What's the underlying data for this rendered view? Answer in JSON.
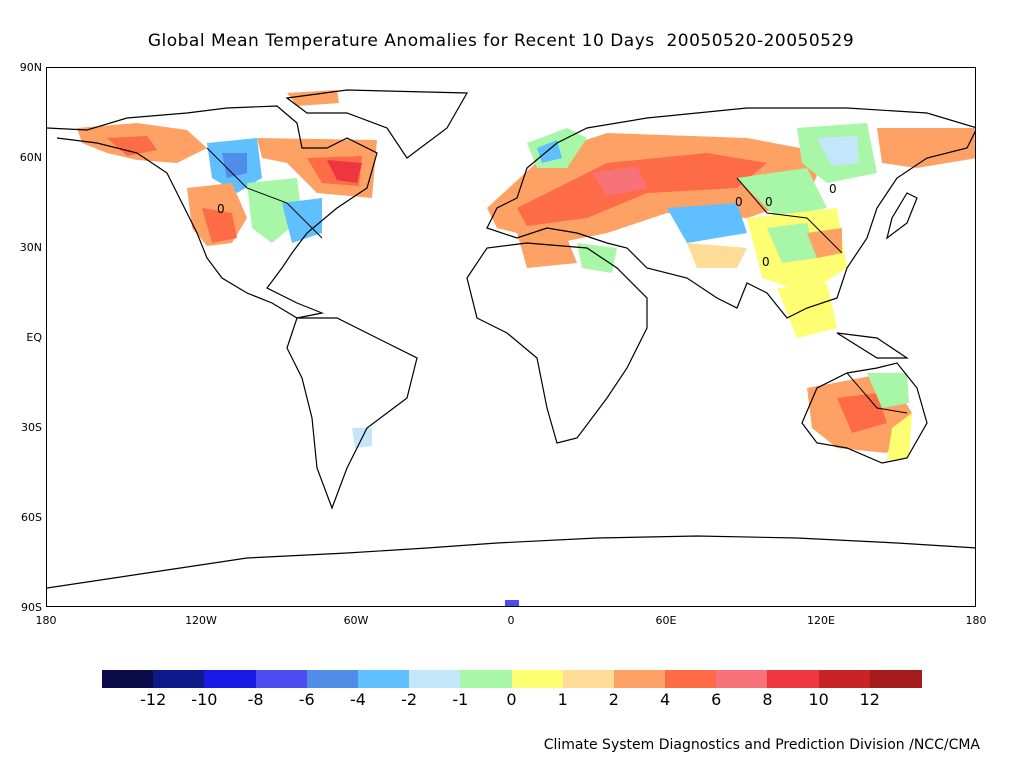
{
  "title": "Global Mean Temperature Anomalies for Recent 10 Days  20050520-20050529",
  "axes": {
    "lat_labels": [
      "90N",
      "60N",
      "30N",
      "EQ",
      "30S",
      "60S",
      "90S"
    ],
    "lon_labels": [
      "180",
      "120W",
      "60W",
      "0",
      "60E",
      "120E",
      "180"
    ]
  },
  "legend": {
    "colors": [
      "#0b0b4a",
      "#0d1a8a",
      "#1a1ae6",
      "#4c4cf0",
      "#4f8de8",
      "#5fbfff",
      "#c4e6fb",
      "#a8f7a8",
      "#fefe72",
      "#fddc97",
      "#fea164",
      "#fd6b47",
      "#f8727a",
      "#ee3640",
      "#c82325",
      "#a41b1e"
    ],
    "labels": [
      "-12",
      "-10",
      "-8",
      "-6",
      "-4",
      "-2",
      "-1",
      "0",
      "1",
      "2",
      "4",
      "6",
      "8",
      "10",
      "12"
    ]
  },
  "contour_label": "0",
  "credit": "Climate System Diagnostics and Prediction Division /NCC/CMA"
}
